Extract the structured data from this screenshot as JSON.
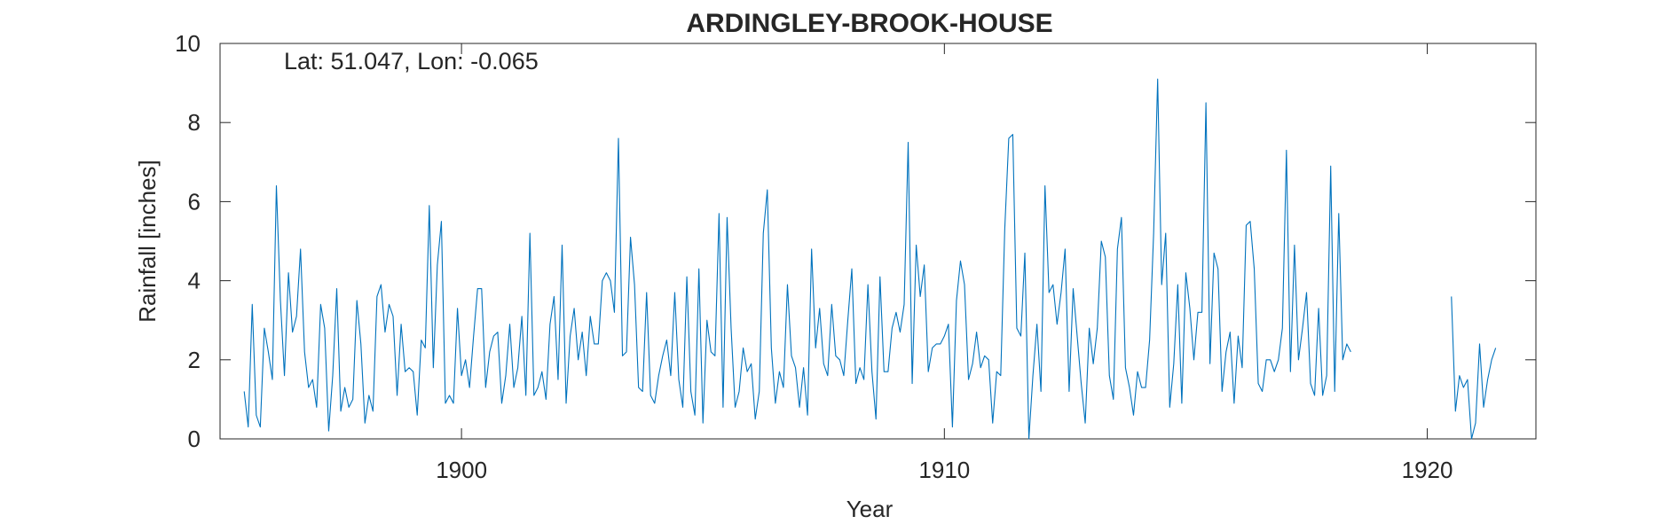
{
  "chart_data": {
    "type": "line",
    "title": "ARDINGLEY-BROOK-HOUSE",
    "annotation": "Lat: 51.047, Lon: -0.065",
    "xlabel": "Year",
    "ylabel": "Rainfall [inches]",
    "xlim": [
      1895.0,
      1922.25
    ],
    "ylim": [
      0,
      10
    ],
    "xticks": [
      1900,
      1910,
      1920
    ],
    "yticks": [
      0,
      2,
      4,
      6,
      8,
      10
    ],
    "grid": false,
    "line_color": "#0072BD",
    "series": [
      {
        "start_year": 1895.5,
        "step": 0.0833333,
        "values": [
          1.2,
          0.3,
          3.4,
          0.6,
          0.3,
          2.8,
          2.2,
          1.5,
          6.4,
          3.5,
          1.6,
          4.2,
          2.7,
          3.1,
          4.8,
          2.2,
          1.3,
          1.5,
          0.8,
          3.4,
          2.8,
          0.2,
          1.6,
          3.8,
          0.7,
          1.3,
          0.8,
          1.0,
          3.5,
          2.4,
          0.4,
          1.1,
          0.7,
          3.6,
          3.9,
          2.7,
          3.4,
          3.1,
          1.1,
          2.9,
          1.7,
          1.8,
          1.7,
          0.6,
          2.5,
          2.3,
          5.9,
          1.8,
          4.4,
          5.5,
          0.9,
          1.1,
          0.9,
          3.3,
          1.6,
          2.0,
          1.3,
          2.6,
          3.8,
          3.8,
          1.3,
          2.2,
          2.6,
          2.7,
          0.9,
          1.6,
          2.9,
          1.3,
          1.8,
          3.1,
          1.1,
          5.2,
          1.1,
          1.3,
          1.7,
          1.0,
          2.9,
          3.6,
          1.5,
          4.9,
          0.9,
          2.6,
          3.3,
          2.0,
          2.7,
          1.6,
          3.1,
          2.4,
          2.4,
          4.0,
          4.2,
          4.0,
          3.2,
          7.6,
          2.1,
          2.2,
          5.1,
          3.9,
          1.3,
          1.2,
          3.7,
          1.1,
          0.9,
          1.6,
          2.1,
          2.5,
          1.6,
          3.7,
          1.5,
          0.8,
          4.1,
          1.2,
          0.6,
          4.3,
          0.4,
          3.0,
          2.2,
          2.1,
          5.7,
          0.8,
          5.6,
          2.8,
          0.8,
          1.2,
          2.3,
          1.7,
          1.9,
          0.5,
          1.2,
          5.2,
          6.3,
          2.3,
          0.9,
          1.7,
          1.3,
          3.9,
          2.1,
          1.8,
          0.8,
          1.8,
          0.6,
          4.8,
          2.3,
          3.3,
          1.9,
          1.6,
          3.4,
          2.1,
          2.0,
          1.6,
          3.0,
          4.3,
          1.4,
          1.8,
          1.5,
          3.9,
          1.7,
          0.5,
          4.1,
          1.7,
          1.7,
          2.8,
          3.2,
          2.7,
          3.4,
          7.5,
          1.4,
          4.9,
          3.6,
          4.4,
          1.7,
          2.3,
          2.4,
          2.4,
          2.6,
          2.9,
          0.3,
          3.5,
          4.5,
          3.9,
          1.5,
          1.9,
          2.7,
          1.8,
          2.1,
          2.0,
          0.4,
          1.7,
          1.6,
          5.3,
          7.6,
          7.7,
          2.8,
          2.6,
          4.7,
          0.0,
          1.6,
          2.9,
          1.2,
          6.4,
          3.7,
          3.9,
          2.9,
          3.7,
          4.8,
          1.2,
          3.8,
          2.6,
          1.4,
          0.4,
          2.8,
          1.9,
          2.8,
          5.0,
          4.6,
          1.6,
          1.0,
          4.8,
          5.6,
          1.8,
          1.3,
          0.6,
          1.7,
          1.3,
          1.3,
          2.5,
          5.2,
          9.1,
          3.9,
          5.2,
          0.8,
          1.9,
          3.9,
          0.9,
          4.2,
          3.3,
          2.0,
          3.2,
          3.2,
          8.5,
          1.9,
          4.7,
          4.3,
          1.2,
          2.2,
          2.7,
          0.9,
          2.6,
          1.8,
          5.4,
          5.5,
          4.3,
          1.4,
          1.2,
          2.0,
          2.0,
          1.7,
          2.0,
          2.8,
          7.3,
          1.7,
          4.9,
          2.0,
          2.8,
          3.7,
          1.4,
          1.1,
          3.3,
          1.1,
          1.6,
          6.9,
          1.2,
          5.7,
          2.0,
          2.4,
          2.2
        ]
      },
      {
        "start_year": 1920.5,
        "step": 0.0833333,
        "values": [
          3.6,
          0.7,
          1.6,
          1.3,
          1.5,
          0.0,
          0.4,
          2.4,
          0.8,
          1.5,
          2.0,
          2.3
        ]
      }
    ]
  }
}
